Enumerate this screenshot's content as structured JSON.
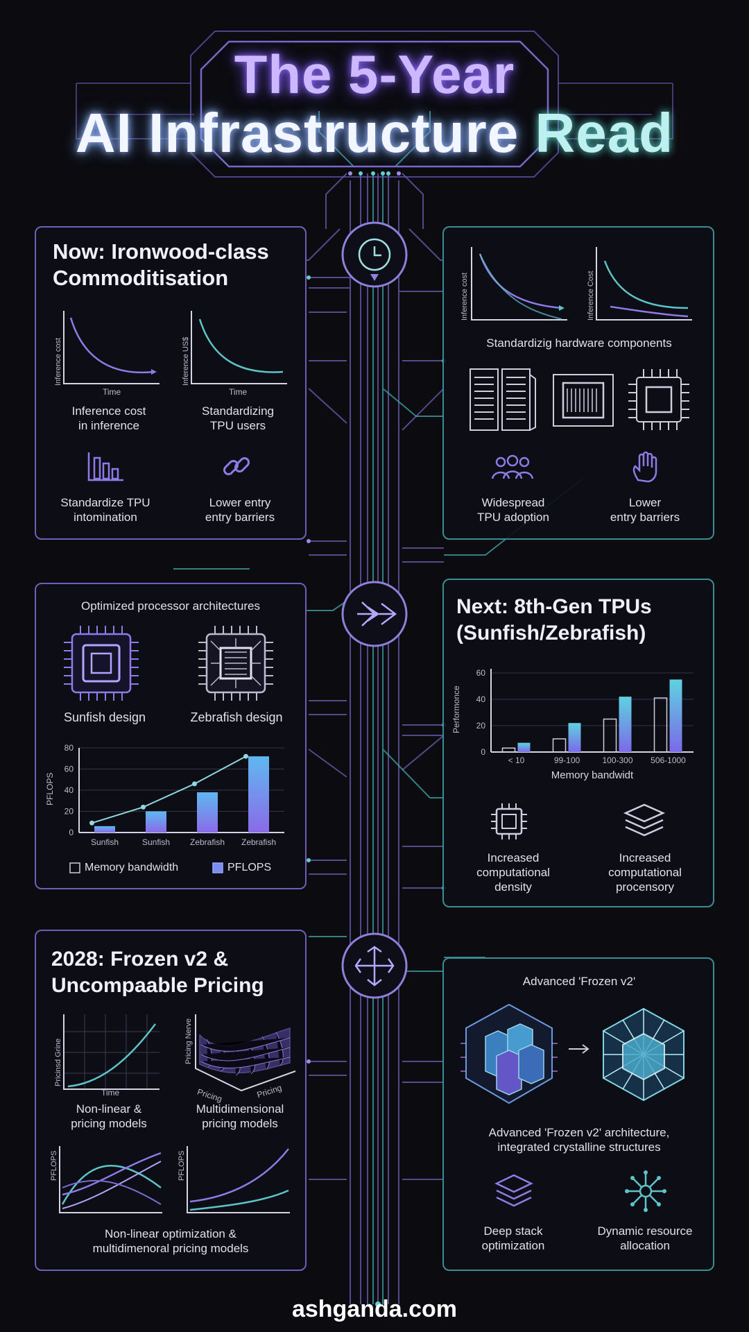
{
  "title": {
    "line1": "The 5-Year",
    "line2_prefix": "AI Infrastructure ",
    "line2_accent": "Read"
  },
  "panel_now": {
    "title": "Now: Ironwood-class\nCommoditisation",
    "chart1": {
      "ylabel": "Inference cost",
      "xlabel": "Time",
      "caption": "Inference cost\nin inference"
    },
    "chart2": {
      "ylabel": "Inference US$",
      "xlabel": "Time",
      "caption": "Standardizing\nTPU users"
    },
    "item1": {
      "icon": "bar-chart-icon",
      "caption": "Standardize TPU\nintomination"
    },
    "item2": {
      "icon": "chain-link-icon",
      "caption": "Lower entry\nentry barriers"
    }
  },
  "panel_hw": {
    "chart1": {
      "ylabel": "Inference cost"
    },
    "chart2": {
      "ylabel": "Inference Cost"
    },
    "heading": "Standardizig hardware components",
    "item1": {
      "icon": "users-icon",
      "caption": "Widespread\nTPU adoption"
    },
    "item2": {
      "icon": "hand-icon",
      "caption": "Lower\nentry barriers"
    }
  },
  "panel_arch": {
    "heading": "Optimized processor architectures",
    "chip1": "Sunfish design",
    "chip2": "Zebrafish design",
    "legend1": "Memory bandwidth",
    "legend2": "PFLOPS"
  },
  "panel_next": {
    "title": "Next: 8th-Gen TPUs\n(Sunfish/Zebrafish)",
    "item1": {
      "icon": "chip-icon",
      "caption": "Increased\ncomputational\ndensity"
    },
    "item2": {
      "icon": "layers-icon",
      "caption": "Increased\ncomputational\nprocensory"
    }
  },
  "panel_2028": {
    "title": "2028: Frozen v2 &\nUncompaable Pricing",
    "chart1": {
      "ylabel": "Pricinsd Grine",
      "xlabel": "Time",
      "caption": "Non-linear &\npricing models"
    },
    "chart2": {
      "ylabel": "Pricing Nerve",
      "xlabel1": "Pricing",
      "xlabel2": "Pricing",
      "caption": "Multidimensional\npricing models"
    },
    "chart3": {
      "ylabel": "PFLOPS"
    },
    "chart4": {
      "ylabel": "PFLOPS"
    },
    "caption": "Non-linear optimization &\nmultidimenoral pricing models"
  },
  "panel_frozen": {
    "heading": "Advanced 'Frozen v2'",
    "caption": "Advanced 'Frozen v2' architecture,\nintegrated crystalline structures",
    "item1": {
      "icon": "stack-icon",
      "caption": "Deep stack\noptimization"
    },
    "item2": {
      "icon": "network-icon",
      "caption": "Dynamic resource\nallocation"
    }
  },
  "footer": "ashganda.com",
  "colors": {
    "bg": "#0b0b10",
    "purple": "#7b63d6",
    "teal": "#4fb6b8",
    "text": "#e8e6f2"
  },
  "chart_data": [
    {
      "type": "bar",
      "categories": [
        "< 10",
        "99-100",
        "100-300",
        "506-1000"
      ],
      "series": [
        {
          "values": [
            3,
            10,
            25,
            41
          ]
        },
        {
          "values": [
            7,
            22,
            42,
            55
          ]
        }
      ],
      "xlabel": "Memory bandwidt",
      "ylabel": "Performonce",
      "ylim": [
        0,
        60
      ],
      "yticks": [
        0,
        20,
        40,
        60
      ]
    },
    {
      "type": "bar",
      "categories": [
        "Sunfish",
        "Sunfish",
        "Zebrafish",
        "Zebrafish"
      ],
      "series": [
        {
          "name": "PFLOPS",
          "values": [
            6,
            20,
            38,
            72
          ]
        },
        {
          "name": "Memory bandwidth",
          "values": [
            9,
            24,
            46,
            72
          ]
        }
      ],
      "ylabel": "PFLOPS",
      "ylim": [
        0,
        80
      ],
      "yticks": [
        0,
        20,
        40,
        60,
        80
      ]
    }
  ]
}
